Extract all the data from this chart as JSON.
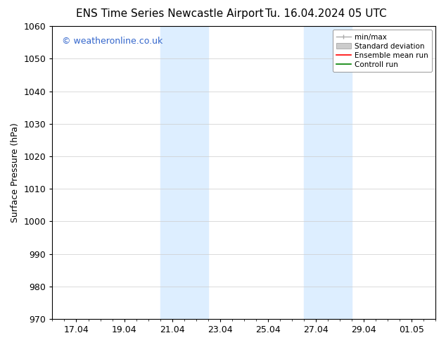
{
  "title_left": "ENS Time Series Newcastle Airport",
  "title_right": "Tu. 16.04.2024 05 UTC",
  "ylabel": "Surface Pressure (hPa)",
  "ylim": [
    970,
    1060
  ],
  "yticks": [
    970,
    980,
    990,
    1000,
    1010,
    1020,
    1030,
    1040,
    1050,
    1060
  ],
  "xtick_labels": [
    "17.04",
    "19.04",
    "21.04",
    "23.04",
    "25.04",
    "27.04",
    "29.04",
    "01.05"
  ],
  "xtick_positions": [
    1,
    3,
    5,
    7,
    9,
    11,
    13,
    15
  ],
  "shaded_regions": [
    {
      "x_start": 4.5,
      "x_end": 6.5
    },
    {
      "x_start": 10.5,
      "x_end": 12.5
    }
  ],
  "shaded_color": "#ddeeff",
  "watermark_text": "© weatheronline.co.uk",
  "watermark_color": "#3366cc",
  "watermark_fontsize": 9,
  "bg_color": "#ffffff",
  "grid_color": "#cccccc",
  "title_fontsize": 11,
  "axis_label_fontsize": 9,
  "tick_fontsize": 9,
  "xlim": [
    0,
    16
  ]
}
